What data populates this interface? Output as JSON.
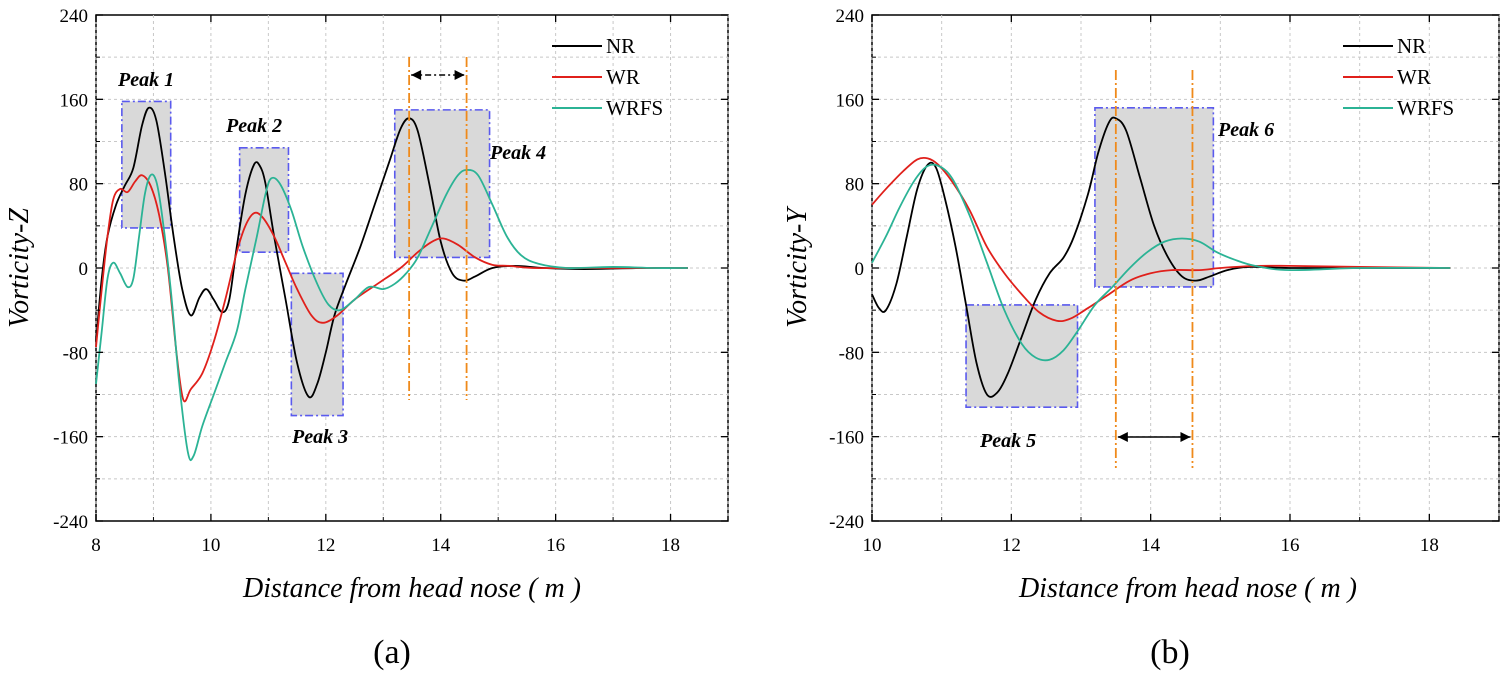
{
  "chart_data": [
    {
      "type": "line",
      "panel": "(a)",
      "xlabel": "Distance from head nose ( m )",
      "ylabel": "Vorticity-Z",
      "xlim": [
        8,
        19
      ],
      "ylim": [
        -240,
        240
      ],
      "xticks": [
        "8",
        "10",
        "12",
        "14",
        "16",
        "18"
      ],
      "yticks": [
        "-240",
        "-160",
        "-80",
        "0",
        "80",
        "160",
        "240"
      ],
      "legend": [
        "NR",
        "WR",
        "WRFS"
      ],
      "legend_position": "top-right",
      "series": [
        {
          "name": "NR",
          "color": "#000000",
          "points": [
            [
              8.0,
              -70
            ],
            [
              8.1,
              -10
            ],
            [
              8.2,
              30
            ],
            [
              8.35,
              60
            ],
            [
              8.5,
              78
            ],
            [
              8.65,
              95
            ],
            [
              8.8,
              135
            ],
            [
              8.92,
              152
            ],
            [
              9.05,
              140
            ],
            [
              9.2,
              90
            ],
            [
              9.35,
              30
            ],
            [
              9.5,
              -20
            ],
            [
              9.65,
              -45
            ],
            [
              9.8,
              -28
            ],
            [
              9.92,
              -20
            ],
            [
              10.05,
              -30
            ],
            [
              10.2,
              -42
            ],
            [
              10.32,
              -30
            ],
            [
              10.45,
              20
            ],
            [
              10.6,
              70
            ],
            [
              10.75,
              98
            ],
            [
              10.85,
              97
            ],
            [
              10.95,
              80
            ],
            [
              11.1,
              30
            ],
            [
              11.3,
              -30
            ],
            [
              11.5,
              -90
            ],
            [
              11.7,
              -122
            ],
            [
              11.85,
              -110
            ],
            [
              12.0,
              -80
            ],
            [
              12.15,
              -45
            ],
            [
              12.35,
              -15
            ],
            [
              12.6,
              20
            ],
            [
              12.85,
              60
            ],
            [
              13.1,
              100
            ],
            [
              13.3,
              132
            ],
            [
              13.45,
              142
            ],
            [
              13.6,
              130
            ],
            [
              13.8,
              80
            ],
            [
              14.0,
              25
            ],
            [
              14.2,
              -5
            ],
            [
              14.4,
              -12
            ],
            [
              14.6,
              -8
            ],
            [
              14.9,
              0
            ],
            [
              15.3,
              2
            ],
            [
              15.8,
              0
            ],
            [
              16.5,
              -1
            ],
            [
              17.5,
              0
            ],
            [
              18.3,
              0
            ]
          ]
        },
        {
          "name": "WR",
          "color": "#e0201b",
          "points": [
            [
              8.0,
              -75
            ],
            [
              8.1,
              -20
            ],
            [
              8.2,
              30
            ],
            [
              8.3,
              65
            ],
            [
              8.42,
              75
            ],
            [
              8.55,
              72
            ],
            [
              8.68,
              82
            ],
            [
              8.8,
              88
            ],
            [
              8.95,
              78
            ],
            [
              9.1,
              50
            ],
            [
              9.25,
              0
            ],
            [
              9.4,
              -80
            ],
            [
              9.52,
              -125
            ],
            [
              9.65,
              -115
            ],
            [
              9.85,
              -100
            ],
            [
              10.05,
              -70
            ],
            [
              10.25,
              -30
            ],
            [
              10.45,
              15
            ],
            [
              10.6,
              40
            ],
            [
              10.75,
              52
            ],
            [
              10.9,
              48
            ],
            [
              11.1,
              30
            ],
            [
              11.3,
              5
            ],
            [
              11.5,
              -20
            ],
            [
              11.75,
              -45
            ],
            [
              11.95,
              -52
            ],
            [
              12.2,
              -45
            ],
            [
              12.5,
              -30
            ],
            [
              12.9,
              -15
            ],
            [
              13.3,
              0
            ],
            [
              13.6,
              15
            ],
            [
              13.85,
              25
            ],
            [
              14.05,
              28
            ],
            [
              14.3,
              22
            ],
            [
              14.6,
              10
            ],
            [
              14.9,
              3
            ],
            [
              15.2,
              2
            ],
            [
              15.6,
              0
            ],
            [
              16.5,
              0
            ],
            [
              17.5,
              0
            ],
            [
              18.3,
              0
            ]
          ]
        },
        {
          "name": "WRFS",
          "color": "#2bb395",
          "points": [
            [
              8.0,
              -110
            ],
            [
              8.1,
              -60
            ],
            [
              8.2,
              -10
            ],
            [
              8.3,
              5
            ],
            [
              8.42,
              -5
            ],
            [
              8.55,
              -18
            ],
            [
              8.65,
              -10
            ],
            [
              8.75,
              30
            ],
            [
              8.85,
              70
            ],
            [
              8.95,
              88
            ],
            [
              9.05,
              82
            ],
            [
              9.15,
              50
            ],
            [
              9.3,
              -20
            ],
            [
              9.45,
              -110
            ],
            [
              9.6,
              -175
            ],
            [
              9.7,
              -178
            ],
            [
              9.85,
              -150
            ],
            [
              10.05,
              -120
            ],
            [
              10.25,
              -90
            ],
            [
              10.45,
              -60
            ],
            [
              10.6,
              -20
            ],
            [
              10.8,
              30
            ],
            [
              10.95,
              70
            ],
            [
              11.05,
              85
            ],
            [
              11.2,
              80
            ],
            [
              11.4,
              55
            ],
            [
              11.6,
              20
            ],
            [
              11.85,
              -15
            ],
            [
              12.05,
              -35
            ],
            [
              12.25,
              -40
            ],
            [
              12.5,
              -30
            ],
            [
              12.75,
              -18
            ],
            [
              13.0,
              -20
            ],
            [
              13.2,
              -15
            ],
            [
              13.4,
              -5
            ],
            [
              13.6,
              10
            ],
            [
              13.85,
              40
            ],
            [
              14.1,
              70
            ],
            [
              14.3,
              88
            ],
            [
              14.45,
              93
            ],
            [
              14.65,
              88
            ],
            [
              14.9,
              60
            ],
            [
              15.15,
              30
            ],
            [
              15.4,
              12
            ],
            [
              15.7,
              4
            ],
            [
              16.2,
              0
            ],
            [
              17.0,
              1
            ],
            [
              17.7,
              0
            ],
            [
              18.3,
              0
            ]
          ]
        }
      ],
      "annotations": [
        {
          "label": "Peak 1",
          "box_x": [
            8.45,
            9.3
          ],
          "box_y": [
            38,
            158
          ]
        },
        {
          "label": "Peak 2",
          "box_x": [
            10.5,
            11.35
          ],
          "box_y": [
            15,
            114
          ]
        },
        {
          "label": "Peak 3",
          "box_x": [
            11.4,
            12.3
          ],
          "box_y": [
            -140,
            -5
          ]
        },
        {
          "label": "Peak 4",
          "box_x": [
            13.2,
            14.85
          ],
          "box_y": [
            10,
            150
          ]
        }
      ],
      "vlines": [
        13.45,
        14.45
      ]
    },
    {
      "type": "line",
      "panel": "(b)",
      "xlabel": "Distance from head nose ( m )",
      "ylabel": "Vorticity-Y",
      "xlim": [
        10,
        19
      ],
      "ylim": [
        -240,
        240
      ],
      "xticks": [
        "10",
        "12",
        "14",
        "16",
        "18"
      ],
      "yticks": [
        "-240",
        "-160",
        "-80",
        "0",
        "80",
        "160",
        "240"
      ],
      "legend": [
        "NR",
        "WR",
        "WRFS"
      ],
      "legend_position": "top-right",
      "series": [
        {
          "name": "NR",
          "color": "#000000",
          "points": [
            [
              10.0,
              -25
            ],
            [
              10.1,
              -38
            ],
            [
              10.2,
              -40
            ],
            [
              10.35,
              -15
            ],
            [
              10.5,
              30
            ],
            [
              10.65,
              75
            ],
            [
              10.8,
              98
            ],
            [
              10.92,
              95
            ],
            [
              11.05,
              65
            ],
            [
              11.2,
              20
            ],
            [
              11.35,
              -35
            ],
            [
              11.5,
              -90
            ],
            [
              11.65,
              -120
            ],
            [
              11.8,
              -118
            ],
            [
              11.95,
              -100
            ],
            [
              12.15,
              -65
            ],
            [
              12.35,
              -30
            ],
            [
              12.55,
              -5
            ],
            [
              12.75,
              10
            ],
            [
              12.9,
              30
            ],
            [
              13.1,
              70
            ],
            [
              13.25,
              110
            ],
            [
              13.4,
              138
            ],
            [
              13.5,
              142
            ],
            [
              13.65,
              130
            ],
            [
              13.85,
              85
            ],
            [
              14.05,
              40
            ],
            [
              14.25,
              10
            ],
            [
              14.45,
              -8
            ],
            [
              14.65,
              -12
            ],
            [
              14.85,
              -8
            ],
            [
              15.1,
              -2
            ],
            [
              15.4,
              1
            ],
            [
              16.0,
              0
            ],
            [
              17.0,
              0
            ],
            [
              18.3,
              0
            ]
          ]
        },
        {
          "name": "WR",
          "color": "#e0201b",
          "points": [
            [
              10.0,
              60
            ],
            [
              10.2,
              75
            ],
            [
              10.45,
              92
            ],
            [
              10.65,
              103
            ],
            [
              10.8,
              104
            ],
            [
              10.95,
              98
            ],
            [
              11.15,
              82
            ],
            [
              11.4,
              55
            ],
            [
              11.65,
              20
            ],
            [
              11.9,
              -5
            ],
            [
              12.15,
              -25
            ],
            [
              12.4,
              -42
            ],
            [
              12.65,
              -50
            ],
            [
              12.85,
              -48
            ],
            [
              13.1,
              -38
            ],
            [
              13.4,
              -25
            ],
            [
              13.7,
              -12
            ],
            [
              14.0,
              -5
            ],
            [
              14.3,
              -2
            ],
            [
              14.7,
              -2
            ],
            [
              15.0,
              0
            ],
            [
              15.5,
              2
            ],
            [
              16.0,
              2
            ],
            [
              17.0,
              1
            ],
            [
              18.3,
              0
            ]
          ]
        },
        {
          "name": "WRFS",
          "color": "#2bb395",
          "points": [
            [
              10.0,
              5
            ],
            [
              10.2,
              30
            ],
            [
              10.4,
              58
            ],
            [
              10.6,
              82
            ],
            [
              10.78,
              96
            ],
            [
              10.95,
              97
            ],
            [
              11.15,
              85
            ],
            [
              11.4,
              50
            ],
            [
              11.65,
              5
            ],
            [
              11.9,
              -40
            ],
            [
              12.15,
              -72
            ],
            [
              12.35,
              -85
            ],
            [
              12.55,
              -87
            ],
            [
              12.75,
              -78
            ],
            [
              12.95,
              -60
            ],
            [
              13.2,
              -35
            ],
            [
              13.45,
              -18
            ],
            [
              13.7,
              0
            ],
            [
              13.95,
              15
            ],
            [
              14.2,
              25
            ],
            [
              14.45,
              28
            ],
            [
              14.7,
              25
            ],
            [
              14.95,
              15
            ],
            [
              15.2,
              8
            ],
            [
              15.5,
              2
            ],
            [
              16.0,
              -2
            ],
            [
              17.0,
              0
            ],
            [
              18.3,
              0
            ]
          ]
        }
      ],
      "annotations": [
        {
          "label": "Peak 5",
          "box_x": [
            11.35,
            12.95
          ],
          "box_y": [
            -132,
            -35
          ]
        },
        {
          "label": "Peak 6",
          "box_x": [
            13.2,
            14.9
          ],
          "box_y": [
            -18,
            152
          ]
        }
      ],
      "vlines": [
        13.5,
        14.6
      ]
    }
  ]
}
